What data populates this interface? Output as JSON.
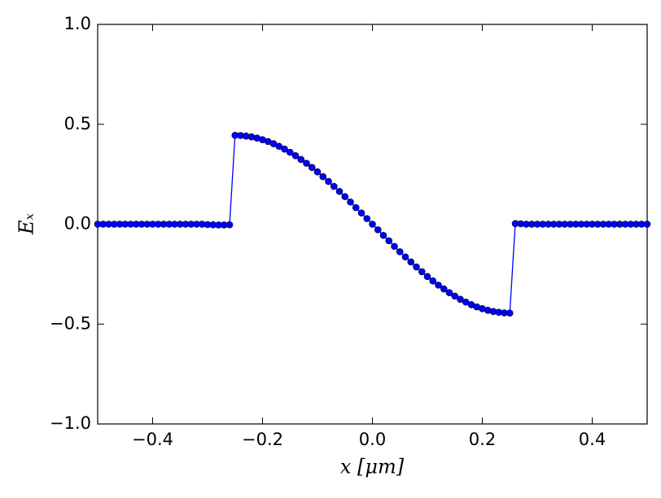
{
  "chart_data": {
    "type": "line",
    "xlabel": "x [μm]",
    "ylabel": "Eₓ",
    "xlim": [
      -0.5,
      0.5
    ],
    "ylim": [
      -1.0,
      1.0
    ],
    "xticks": [
      {
        "value": -0.4,
        "label": "−0.4"
      },
      {
        "value": -0.2,
        "label": "−0.2"
      },
      {
        "value": 0,
        "label": "0.0"
      },
      0.2,
      0.4
    ],
    "yticks": [
      {
        "value": -1.0,
        "label": "−1.0"
      },
      {
        "value": -0.5,
        "label": "−0.5"
      },
      {
        "value": 0,
        "label": "0.0"
      },
      0.5,
      {
        "value": 1.0,
        "label": "1.0"
      }
    ],
    "series": [
      {
        "color": "#0000ff",
        "x": [
          -0.5,
          -0.49,
          -0.48,
          -0.47,
          -0.46,
          -0.45,
          -0.44,
          -0.43,
          -0.42,
          -0.41,
          -0.4,
          -0.39,
          -0.38,
          -0.37,
          -0.36,
          -0.35,
          -0.34,
          -0.33,
          -0.32,
          -0.31,
          -0.3,
          -0.29,
          -0.28,
          -0.27,
          -0.26,
          -0.25,
          -0.24,
          -0.23,
          -0.22,
          -0.21,
          -0.2,
          -0.19,
          -0.18,
          -0.17,
          -0.16,
          -0.15,
          -0.14,
          -0.13,
          -0.12,
          -0.11,
          -0.1,
          -0.09,
          -0.08,
          -0.07,
          -0.06,
          -0.05,
          -0.04,
          -0.03,
          -0.02,
          -0.01,
          0,
          0.01,
          0.02,
          0.03,
          0.04,
          0.05,
          0.06,
          0.07,
          0.08,
          0.09,
          0.1,
          0.11,
          0.12,
          0.13,
          0.14,
          0.15,
          0.16,
          0.17,
          0.18,
          0.19,
          0.2,
          0.21,
          0.22,
          0.23,
          0.24,
          0.25,
          0.26,
          0.27,
          0.28,
          0.29,
          0.3,
          0.31,
          0.32,
          0.33,
          0.34,
          0.35,
          0.36,
          0.37,
          0.38,
          0.39,
          0.4,
          0.41,
          0.42,
          0.43,
          0.44,
          0.45,
          0.46,
          0.47,
          0.48,
          0.49,
          0.5
        ],
        "values": [
          0,
          0,
          0,
          0,
          0,
          0,
          0,
          0,
          0,
          0,
          0,
          0,
          0,
          0,
          0,
          0,
          0,
          0,
          0,
          0,
          -0.002,
          -0.003,
          -0.004,
          -0.004,
          -0.003,
          0.445,
          0.444,
          0.441,
          0.437,
          0.431,
          0.423,
          0.414,
          0.403,
          0.39,
          0.376,
          0.36,
          0.343,
          0.324,
          0.305,
          0.284,
          0.262,
          0.238,
          0.214,
          0.189,
          0.164,
          0.138,
          0.111,
          0.083,
          0.056,
          0.028,
          0,
          -0.028,
          -0.056,
          -0.083,
          -0.111,
          -0.138,
          -0.164,
          -0.189,
          -0.214,
          -0.238,
          -0.262,
          -0.284,
          -0.305,
          -0.324,
          -0.343,
          -0.36,
          -0.376,
          -0.39,
          -0.403,
          -0.414,
          -0.423,
          -0.431,
          -0.437,
          -0.441,
          -0.444,
          -0.445,
          0.003,
          0.002,
          0,
          0,
          0,
          0,
          0,
          0,
          0,
          0,
          0,
          0,
          0,
          0,
          0,
          0,
          0,
          0,
          0,
          0,
          0,
          0,
          0,
          0,
          0
        ]
      }
    ]
  }
}
